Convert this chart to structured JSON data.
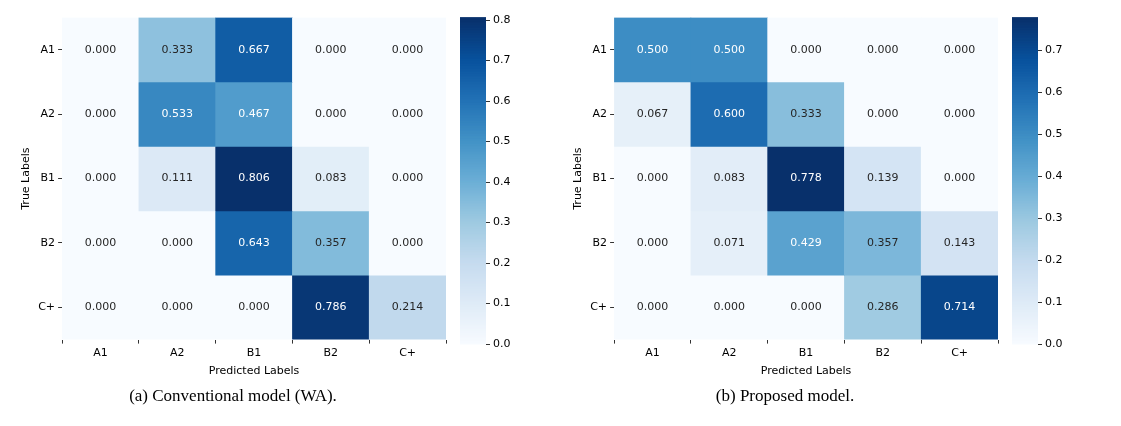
{
  "chart_data": [
    {
      "type": "heatmap",
      "title": "(a) Conventional model (WA).",
      "xlabel": "Predicted Labels",
      "ylabel": "True Labels",
      "categories": [
        "A1",
        "A2",
        "B1",
        "B2",
        "C+"
      ],
      "y_categories": [
        "A1",
        "A2",
        "B1",
        "B2",
        "C+"
      ],
      "cells": [
        [
          0,
          0.333,
          0.667,
          0,
          0
        ],
        [
          0,
          0.533,
          0.467,
          0,
          0
        ],
        [
          0,
          0.111,
          0.806,
          0.083,
          0
        ],
        [
          0,
          0,
          0.643,
          0.357,
          0
        ],
        [
          0,
          0,
          0,
          0.786,
          0.214
        ]
      ],
      "cell_labels": [
        [
          "0.000",
          "0.333",
          "0.667",
          "0.000",
          "0.000"
        ],
        [
          "0.000",
          "0.533",
          "0.467",
          "0.000",
          "0.000"
        ],
        [
          "0.000",
          "0.111",
          "0.806",
          "0.083",
          "0.000"
        ],
        [
          "0.000",
          "0.000",
          "0.643",
          "0.357",
          "0.000"
        ],
        [
          "0.000",
          "0.000",
          "0.000",
          "0.786",
          "0.214"
        ]
      ],
      "clim": [
        0,
        0.806
      ],
      "cticks": [
        {
          "value": 0,
          "label": "0.0"
        },
        0.1,
        0.2,
        0.3,
        0.4,
        0.5,
        0.6,
        0.7,
        0.8
      ]
    },
    {
      "type": "heatmap",
      "title": "(b) Proposed model.",
      "xlabel": "Predicted Labels",
      "ylabel": "True Labels",
      "categories": [
        "A1",
        "A2",
        "B1",
        "B2",
        "C+"
      ],
      "y_categories": [
        "A1",
        "A2",
        "B1",
        "B2",
        "C+"
      ],
      "cells": [
        [
          0.5,
          0.5,
          0,
          0,
          0
        ],
        [
          0.067,
          0.6,
          0.333,
          0,
          0
        ],
        [
          0,
          0.083,
          0.778,
          0.139,
          0
        ],
        [
          0,
          0.071,
          0.429,
          0.357,
          0.143
        ],
        [
          0,
          0,
          0,
          0.286,
          0.714
        ]
      ],
      "cell_labels": [
        [
          "0.500",
          "0.500",
          "0.000",
          "0.000",
          "0.000"
        ],
        [
          "0.067",
          "0.600",
          "0.333",
          "0.000",
          "0.000"
        ],
        [
          "0.000",
          "0.083",
          "0.778",
          "0.139",
          "0.000"
        ],
        [
          "0.000",
          "0.071",
          "0.429",
          "0.357",
          "0.143"
        ],
        [
          "0.000",
          "0.000",
          "0.000",
          "0.286",
          "0.714"
        ]
      ],
      "clim": [
        0,
        0.778
      ],
      "cticks": [
        {
          "value": 0,
          "label": "0.0"
        },
        0.1,
        0.2,
        0.3,
        0.4,
        0.5,
        0.6,
        0.7
      ]
    }
  ]
}
